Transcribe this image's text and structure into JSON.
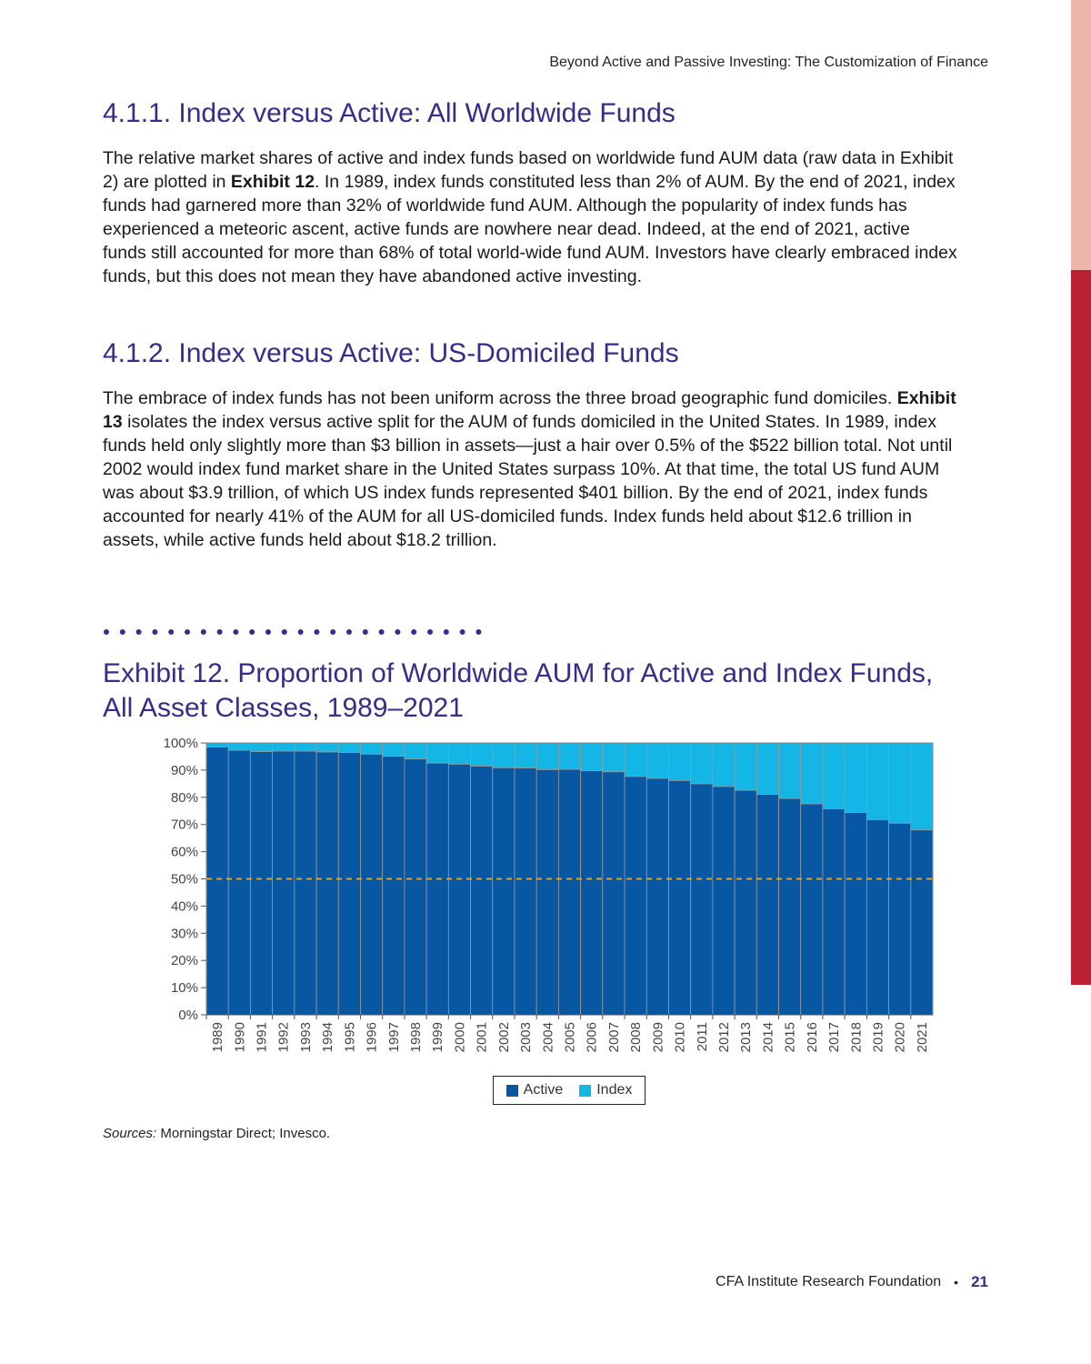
{
  "running_head": "Beyond Active and Passive Investing: The Customization of Finance",
  "section1": {
    "heading": "4.1.1. Index versus Active: All Worldwide Funds",
    "para_a": "The relative market shares of active and index funds based on worldwide fund AUM data (raw data in Exhibit 2) are plotted in ",
    "para_bold": "Exhibit 12",
    "para_b": ". In 1989, index funds constituted less than 2% of AUM. By the end of 2021, index funds had garnered more than 32% of worldwide fund AUM. Although the popularity of index funds has experienced a meteoric ascent, active funds are nowhere near dead. Indeed, at the end of 2021, active funds still accounted for more than 68% of total world-wide fund AUM. Investors have clearly embraced index funds, but this does not mean they have abandoned active investing."
  },
  "section2": {
    "heading": "4.1.2. Index versus Active: US-Domiciled Funds",
    "para_a": "The embrace of index funds has not been uniform across the three broad geographic fund domiciles. ",
    "para_bold": "Exhibit 13",
    "para_b": " isolates the index versus active split for the AUM of funds domiciled in the United States. In 1989, index funds held only slightly more than $3 billion in assets—just a hair over 0.5% of the $522 billion total. Not until 2002 would index fund market share in the United States surpass 10%. At that time, the total US fund AUM was about $3.9 trillion, of which US index funds represented $401 billion. By the end of 2021, index funds accounted for nearly 41% of the AUM for all US-domiciled funds. Index funds held about $12.6 trillion in assets, while active funds held about $18.2 trillion."
  },
  "exhibit_title": "Exhibit 12. Proportion of Worldwide AUM for Active and Index Funds, All Asset Classes, 1989–2021",
  "sources_label": "Sources:",
  "sources_text": " Morningstar Direct; Invesco.",
  "footer": {
    "org": "CFA Institute Research Foundation",
    "bullet": "•",
    "page": "21"
  },
  "colors": {
    "active": "#0857a3",
    "index": "#14b6e6",
    "reference_line": "#e0a52a",
    "heading": "#3b2a8a"
  },
  "chart_data": {
    "type": "bar",
    "stacked": true,
    "categories": [
      "1989",
      "1990",
      "1991",
      "1992",
      "1993",
      "1994",
      "1995",
      "1996",
      "1997",
      "1998",
      "1999",
      "2000",
      "2001",
      "2002",
      "2003",
      "2004",
      "2005",
      "2006",
      "2007",
      "2008",
      "2009",
      "2010",
      "2011",
      "2012",
      "2013",
      "2014",
      "2015",
      "2016",
      "2017",
      "2018",
      "2019",
      "2020",
      "2021"
    ],
    "series": [
      {
        "name": "Active",
        "values": [
          98.5,
          97.3,
          96.8,
          97.0,
          97.0,
          96.7,
          96.5,
          95.9,
          95.1,
          94.1,
          92.6,
          92.2,
          91.5,
          90.9,
          90.8,
          90.2,
          90.3,
          89.8,
          89.4,
          87.7,
          87.0,
          86.2,
          85.0,
          84.0,
          82.6,
          81.1,
          79.6,
          77.6,
          75.8,
          74.4,
          71.8,
          70.5,
          68.0
        ]
      },
      {
        "name": "Index",
        "values": [
          1.5,
          2.7,
          3.2,
          3.0,
          3.0,
          3.3,
          3.5,
          4.1,
          4.9,
          5.9,
          7.4,
          7.8,
          8.5,
          9.1,
          9.2,
          9.8,
          9.7,
          10.2,
          10.6,
          12.3,
          13.0,
          13.8,
          15.0,
          16.0,
          17.4,
          18.9,
          20.4,
          22.4,
          24.2,
          25.6,
          28.2,
          29.5,
          32.0
        ]
      }
    ],
    "y_ticks": [
      "0%",
      "10%",
      "20%",
      "30%",
      "40%",
      "50%",
      "60%",
      "70%",
      "80%",
      "90%",
      "100%"
    ],
    "ylim": [
      0,
      100
    ],
    "reference_line": {
      "value": 50,
      "style": "dashed"
    },
    "legend": {
      "position": "bottom-center"
    },
    "grid": false
  }
}
